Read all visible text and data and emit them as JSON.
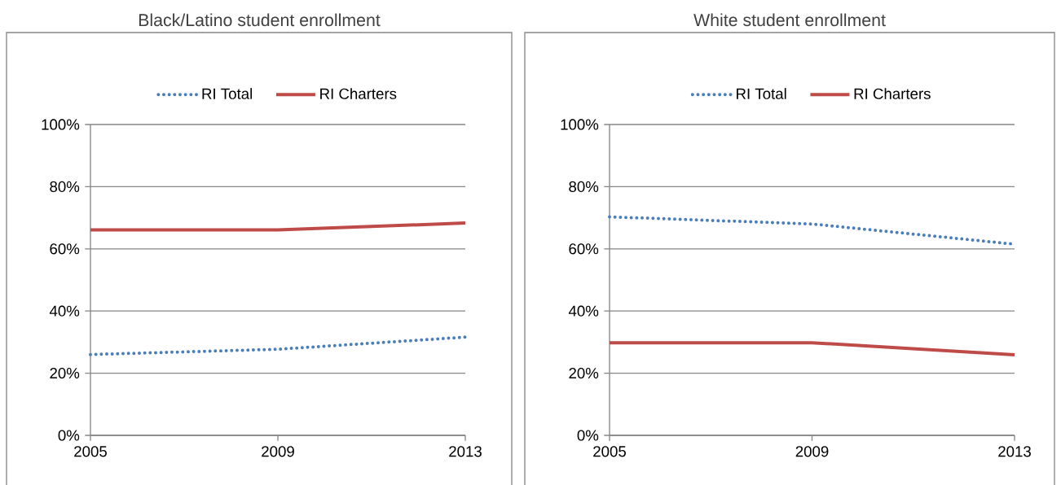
{
  "chart_data": [
    {
      "type": "line",
      "title": "Black/Latino student enrollment",
      "categories": [
        "2005",
        "2009",
        "2013"
      ],
      "series": [
        {
          "name": "RI Total",
          "color": "#4a7ebb",
          "line_style": "dotted",
          "values": [
            26.0,
            27.7,
            31.6
          ]
        },
        {
          "name": "RI Charters",
          "color": "#be4b48",
          "line_style": "solid",
          "values": [
            66.1,
            66.1,
            68.3
          ]
        }
      ],
      "ylim": [
        0,
        100
      ],
      "yticks": [
        {
          "value": 0,
          "label": "0%"
        },
        {
          "value": 20,
          "label": "20%"
        },
        {
          "value": 40,
          "label": "40%"
        },
        {
          "value": 60,
          "label": "60%"
        },
        {
          "value": 80,
          "label": "80%"
        },
        {
          "value": 100,
          "label": "100%"
        }
      ],
      "grid": "y",
      "legend": "top"
    },
    {
      "type": "line",
      "title": "White student enrollment",
      "categories": [
        "2005",
        "2009",
        "2013"
      ],
      "series": [
        {
          "name": "RI Total",
          "color": "#4a7ebb",
          "line_style": "dotted",
          "values": [
            70.3,
            68.0,
            61.5
          ]
        },
        {
          "name": "RI Charters",
          "color": "#be4b48",
          "line_style": "solid",
          "values": [
            29.8,
            29.8,
            25.9
          ]
        }
      ],
      "ylim": [
        0,
        100
      ],
      "yticks": [
        {
          "value": 0,
          "label": "0%"
        },
        {
          "value": 20,
          "label": "20%"
        },
        {
          "value": 40,
          "label": "40%"
        },
        {
          "value": 60,
          "label": "60%"
        },
        {
          "value": 80,
          "label": "80%"
        },
        {
          "value": 100,
          "label": "100%"
        }
      ],
      "grid": "y",
      "legend": "top"
    }
  ]
}
